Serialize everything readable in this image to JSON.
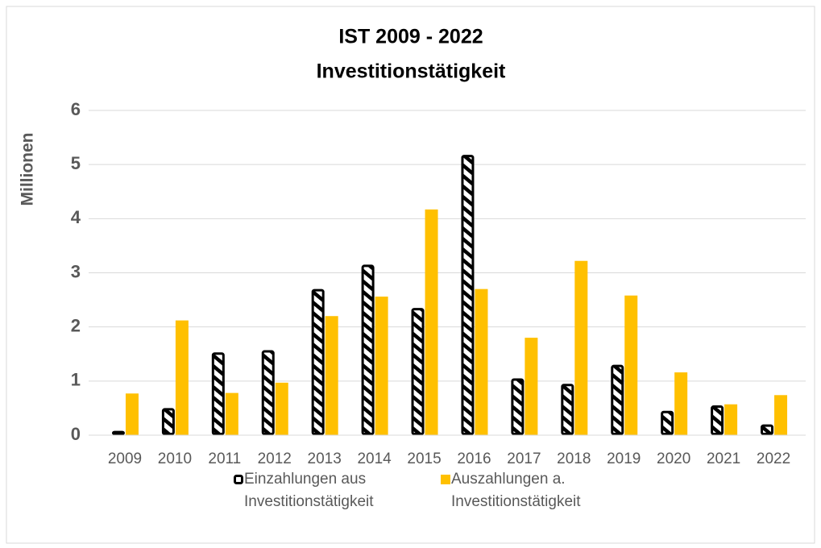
{
  "chart_data": {
    "type": "bar",
    "title": "IST 2009 - 2022",
    "subtitle": "Investitionstätigkeit",
    "y_label": "Millionen",
    "categories": [
      "2009",
      "2010",
      "2011",
      "2012",
      "2013",
      "2014",
      "2015",
      "2016",
      "2017",
      "2018",
      "2019",
      "2020",
      "2021",
      "2022"
    ],
    "series": [
      {
        "name": "Einzahlungen aus Investitionstätigkeit",
        "color": "#000000",
        "hatch": true,
        "values": [
          0.08,
          0.5,
          1.53,
          1.57,
          2.7,
          3.15,
          2.35,
          5.18,
          1.05,
          0.95,
          1.3,
          0.45,
          0.55,
          0.2
        ]
      },
      {
        "name": "Auszahlungen a. Investitionstätigkeit",
        "color": "#ffc000",
        "hatch": false,
        "values": [
          0.77,
          2.12,
          0.78,
          0.97,
          2.2,
          2.56,
          4.17,
          2.7,
          1.8,
          3.22,
          2.58,
          1.16,
          0.57,
          0.74
        ]
      }
    ],
    "ylim": [
      0,
      6
    ],
    "yticks": [
      0,
      1,
      2,
      3,
      4,
      5,
      6
    ],
    "grid": true,
    "legend": "bottom"
  }
}
